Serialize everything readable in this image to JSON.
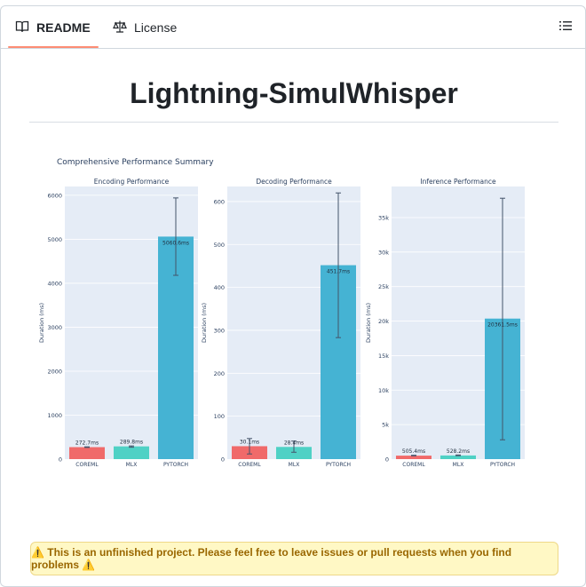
{
  "tabs": {
    "readme_label": "README",
    "license_label": "License",
    "readme_icon": "book-icon",
    "license_icon": "scale-icon",
    "outline_icon": "list-unordered-icon"
  },
  "readme": {
    "title": "Lightning-SimulWhisper",
    "notice": "⚠️ This is an unfinished project. Please feel free to leave issues or pull requests when you find problems ⚠️"
  },
  "colors": {
    "tab_underline": "#fd8c73",
    "coreml": "#f06a6a",
    "mlx": "#4fd1c5",
    "pytorch": "#45b3d3",
    "plot_bg": "#e5ecf6",
    "notice_bg": "#fff8c5",
    "notice_text": "#9a6700"
  },
  "chart_data": {
    "type": "bar",
    "title": "Comprehensive Performance Summary",
    "ylabel": "Duration (ms)",
    "panels": [
      {
        "title": "Encoding Performance",
        "categories": [
          "COREML",
          "MLX",
          "PYTORCH"
        ],
        "values": [
          272.7,
          289.8,
          5060.6
        ],
        "labels": [
          "272.7ms",
          "289.8ms",
          "5060.6ms"
        ],
        "error_low": [
          265,
          270,
          4180
        ],
        "error_high": [
          280,
          300,
          5940
        ],
        "ylim": [
          0,
          6200
        ],
        "ticks": [
          0,
          1000,
          2000,
          3000,
          4000,
          5000,
          6000
        ],
        "tick_labels": [
          "0",
          "1000",
          "2000",
          "3000",
          "4000",
          "5000",
          "6000"
        ]
      },
      {
        "title": "Decoding Performance",
        "categories": [
          "COREML",
          "MLX",
          "PYTORCH"
        ],
        "values": [
          30.1,
          28.4,
          451.7
        ],
        "labels": [
          "30.1ms",
          "28.4ms",
          "451.7ms"
        ],
        "error_low": [
          12,
          16,
          283
        ],
        "error_high": [
          48,
          42,
          620
        ],
        "ylim": [
          0,
          635
        ],
        "ticks": [
          0,
          100,
          200,
          300,
          400,
          500,
          600
        ],
        "tick_labels": [
          "0",
          "100",
          "200",
          "300",
          "400",
          "500",
          "600"
        ]
      },
      {
        "title": "Inference Performance",
        "categories": [
          "COREML",
          "MLX",
          "PYTORCH"
        ],
        "values": [
          505.4,
          528.2,
          20361.5
        ],
        "labels": [
          "505.4ms",
          "528.2ms",
          "20361.5ms"
        ],
        "error_low": [
          480,
          500,
          2800
        ],
        "error_high": [
          560,
          600,
          37800
        ],
        "ylim": [
          0,
          39500
        ],
        "ticks": [
          0,
          5000,
          10000,
          15000,
          20000,
          25000,
          30000,
          35000
        ],
        "tick_labels": [
          "0",
          "5k",
          "10k",
          "15k",
          "20k",
          "25k",
          "30k",
          "35k"
        ]
      }
    ]
  }
}
